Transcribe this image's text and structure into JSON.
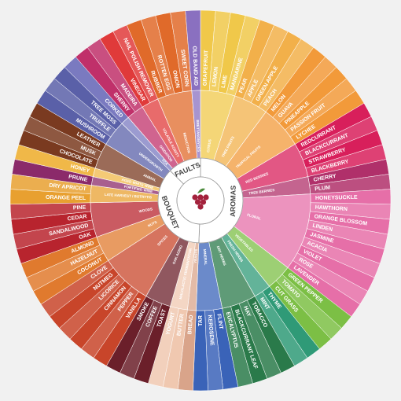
{
  "groups": [
    {
      "label": "AROMAS",
      "color": "#ffffff",
      "categories": [
        {
          "label": "CITRUS",
          "color": "#f0c84a",
          "items": [
            "GRAPEFRUIT",
            "LEMON",
            "LIME",
            "MANDARINE"
          ]
        },
        {
          "label": "TREE FRUITS",
          "color": "#f2b04a",
          "items": [
            "PEAR",
            "APPLE",
            "GREEN APPLE",
            "PEACH"
          ]
        },
        {
          "label": "TROPICAL FRUITS",
          "color": "#f29a3a",
          "items": [
            "MELON",
            "GUAVA",
            "PINEAPPLE",
            "PASSION FRUIT",
            "LYCHEE"
          ]
        },
        {
          "label": "RED BERRIES",
          "color": "#d81f5b",
          "items": [
            "REDCURRANT",
            "BLACKCURRANT",
            "STRAWBERRY",
            "BLACKBERRY"
          ]
        },
        {
          "label": "TREE BERRIES",
          "color": "#b0306a",
          "items": [
            "CHERRY",
            "PLUM"
          ]
        },
        {
          "label": "FLORAL",
          "color": "#e66fa8",
          "items": [
            "HONEYSUCKLE",
            "HAWTHORN",
            "ORANGE BLOSSOM",
            "LINDEN",
            "JASMINE",
            "ACACIA",
            "VIOLET",
            "ROSE",
            "LAVENDER"
          ]
        },
        {
          "label": "VEGETABLES",
          "color": "#7cbf45",
          "items": [
            "GREEN PEPPER",
            "TOMATO",
            "CUT GRASS"
          ]
        },
        {
          "label": "FRESH HERBS",
          "color": "#2f9a77",
          "items": [
            "THYME",
            "MINT"
          ]
        },
        {
          "label": "DRY HERBS",
          "color": "#2a7a4a",
          "items": [
            "TOBACCO",
            "HAY",
            "BLACKCURRANT LEAF",
            "EUCALYPTUS"
          ]
        },
        {
          "label": "MINERAL",
          "color": "#3a63b8",
          "items": [
            "FLINT",
            "KEROSENE",
            "TAR"
          ]
        }
      ]
    },
    {
      "label": "BOUQUET",
      "color": "#ffffff",
      "categories": [
        {
          "label": "YEASTS",
          "color": "#d9a48a",
          "items": [
            "BREAD"
          ]
        },
        {
          "label": "MALOLACTIC FERMENTATION",
          "color": "#f0c8b0",
          "items": [
            "BUTTER",
            "YOGURT"
          ]
        },
        {
          "label": "OAK AGING",
          "color": "#6b1f2a",
          "items": [
            "TOAST",
            "COFFEE",
            "SMOKE"
          ]
        },
        {
          "label": "SPICES",
          "color": "#c8452a",
          "items": [
            "VANILLA",
            "PEPPER",
            "CINNAMON",
            "LICORICE",
            "NUTMEG",
            "CLOVE"
          ]
        },
        {
          "label": "NUTS",
          "color": "#e07a2e",
          "items": [
            "COCONUT",
            "HAZELNUT",
            "ALMOND"
          ]
        },
        {
          "label": "WOODS",
          "color": "#b8242e",
          "items": [
            "OAK",
            "SANDALWOOD",
            "CEDAR",
            "PINE"
          ]
        },
        {
          "label": "LATE HARVEST / BOTRYTIS",
          "color": "#e8a030",
          "items": [
            "ORANGE PEEL",
            "DRY APRICOT"
          ]
        },
        {
          "label": "FORTIFIED WINE",
          "color": "#8b2a6a",
          "items": [
            "PRUNE"
          ]
        },
        {
          "label": "AGED WHITE WINE",
          "color": "#f0b848",
          "items": [
            "HONEY"
          ]
        },
        {
          "label": "ANIMAL",
          "color": "#7a3a20",
          "items": [
            "CHOCOLATE",
            "MUSK",
            "LEATHER"
          ]
        },
        {
          "label": "UNDERGROWTH",
          "color": "#5a60a8",
          "items": [
            "MUSHROOM",
            "TRUFFLE",
            "TREE MOSS"
          ]
        }
      ]
    },
    {
      "label": "FAULTS",
      "color": "#ffffff",
      "categories": [
        {
          "label": "TCA",
          "color": "#7a7ac0",
          "items": [
            "CORKED"
          ]
        },
        {
          "label": "OXIDATION",
          "color": "#c0306a",
          "items": [
            "SHERRY",
            "MADEIRA"
          ]
        },
        {
          "label": "VOLATILE ACIDITY",
          "color": "#e03a3a",
          "items": [
            "VINEGAR",
            "NAIL POLISH REMOVER"
          ]
        },
        {
          "label": "REDUCTION",
          "color": "#e06a2a",
          "items": [
            "RUBBER",
            "ROTTEN EGG",
            "ONION",
            "SWEET CORN"
          ]
        },
        {
          "label": "BRETTANOMYCES",
          "color": "#8a70c0",
          "items": [
            "OLD BAND AID"
          ]
        }
      ]
    }
  ]
}
